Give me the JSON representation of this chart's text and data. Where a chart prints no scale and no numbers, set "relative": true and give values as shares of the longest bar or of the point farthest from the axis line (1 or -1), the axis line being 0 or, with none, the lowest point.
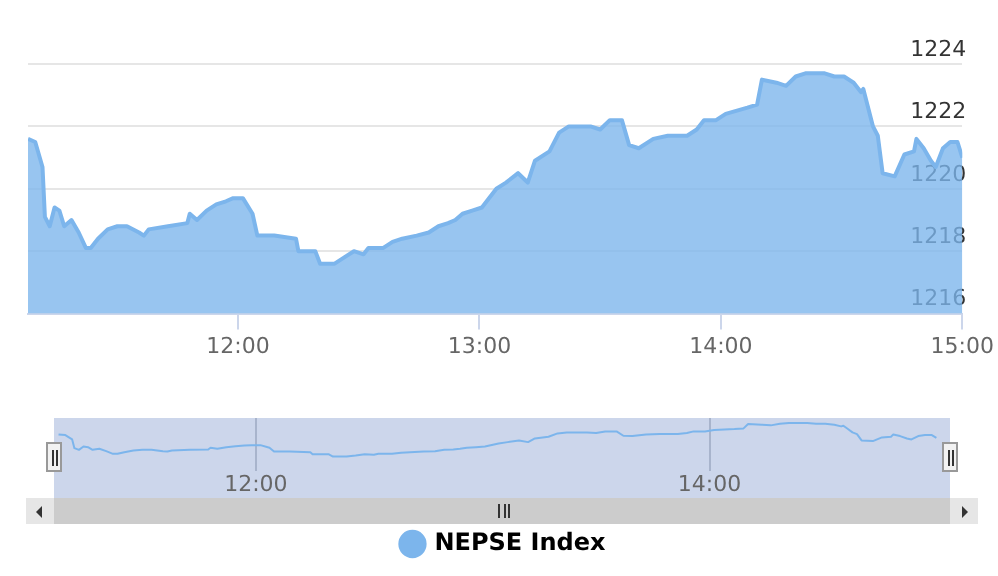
{
  "chart_data": [
    {
      "type": "area",
      "x": [
        11.13,
        11.16,
        11.19,
        11.2,
        11.22,
        11.24,
        11.26,
        11.28,
        11.31,
        11.34,
        11.37,
        11.39,
        11.42,
        11.46,
        11.5,
        11.54,
        11.59,
        11.61,
        11.63,
        11.71,
        11.79,
        11.8,
        11.83,
        11.87,
        11.91,
        11.95,
        11.98,
        12.02,
        12.06,
        12.08,
        12.15,
        12.24,
        12.25,
        12.32,
        12.34,
        12.4,
        12.44,
        12.48,
        12.52,
        12.54,
        12.6,
        12.64,
        12.68,
        12.74,
        12.79,
        12.83,
        12.87,
        12.9,
        12.93,
        12.97,
        13.01,
        13.07,
        13.11,
        13.16,
        13.2,
        13.23,
        13.29,
        13.33,
        13.37,
        13.46,
        13.5,
        13.54,
        13.59,
        13.62,
        13.66,
        13.72,
        13.78,
        13.86,
        13.9,
        13.93,
        13.98,
        14.02,
        14.11,
        14.15,
        14.17,
        14.23,
        14.27,
        14.31,
        14.35,
        14.39,
        14.43,
        14.47,
        14.51,
        14.55,
        14.58,
        14.59,
        14.61,
        14.63,
        14.65,
        14.67,
        14.72,
        14.76,
        14.8,
        14.81,
        14.84,
        14.87,
        14.89,
        14.92,
        14.95,
        14.98,
        15.0
      ],
      "series": [
        {
          "name": "NEPSE Index",
          "color": "#7cb5ec",
          "values": [
            1221.6,
            1221.5,
            1220.7,
            1219.1,
            1218.8,
            1219.4,
            1219.3,
            1218.8,
            1219.0,
            1218.6,
            1218.1,
            1218.1,
            1218.4,
            1218.7,
            1218.8,
            1218.8,
            1218.6,
            1218.5,
            1218.7,
            1218.8,
            1218.9,
            1219.2,
            1219.0,
            1219.3,
            1219.5,
            1219.6,
            1219.7,
            1219.7,
            1219.2,
            1218.5,
            1218.5,
            1218.4,
            1218.0,
            1218.0,
            1217.6,
            1217.6,
            1217.8,
            1218.0,
            1217.9,
            1218.1,
            1218.1,
            1218.3,
            1218.4,
            1218.5,
            1218.6,
            1218.8,
            1218.9,
            1219.0,
            1219.2,
            1219.3,
            1219.4,
            1220.0,
            1220.2,
            1220.5,
            1220.2,
            1220.9,
            1221.2,
            1221.8,
            1222.0,
            1222.0,
            1221.9,
            1222.2,
            1222.2,
            1221.4,
            1221.3,
            1221.6,
            1221.7,
            1221.7,
            1221.9,
            1222.2,
            1222.2,
            1222.4,
            1222.6,
            1222.7,
            1223.5,
            1223.4,
            1223.3,
            1223.6,
            1223.7,
            1223.7,
            1223.7,
            1223.6,
            1223.6,
            1223.4,
            1223.1,
            1223.2,
            1222.6,
            1222.0,
            1221.7,
            1220.5,
            1220.4,
            1221.1,
            1221.2,
            1221.6,
            1221.3,
            1220.9,
            1220.7,
            1221.3,
            1221.5,
            1221.5,
            1221.0
          ]
        }
      ],
      "xlim": [
        11.13,
        15
      ],
      "xticks": [
        {
          "value": 12,
          "label": "12:00"
        },
        {
          "value": 13,
          "label": "13:00"
        },
        {
          "value": 14,
          "label": "14:00"
        },
        {
          "value": 15,
          "label": "15:00"
        }
      ],
      "ylim": [
        1216,
        1224
      ],
      "yticks": [
        1216,
        1218,
        1220,
        1222,
        1224
      ],
      "grid": "y",
      "legend": "bottom"
    },
    {
      "type": "line",
      "relative": true,
      "x": [
        11.13,
        11.16,
        11.19,
        11.2,
        11.22,
        11.24,
        11.26,
        11.28,
        11.31,
        11.34,
        11.37,
        11.39,
        11.42,
        11.46,
        11.5,
        11.54,
        11.59,
        11.61,
        11.63,
        11.71,
        11.79,
        11.8,
        11.83,
        11.87,
        11.91,
        11.95,
        11.98,
        12.02,
        12.06,
        12.08,
        12.15,
        12.24,
        12.25,
        12.32,
        12.34,
        12.4,
        12.44,
        12.48,
        12.52,
        12.54,
        12.6,
        12.64,
        12.68,
        12.74,
        12.79,
        12.83,
        12.87,
        12.9,
        12.93,
        12.97,
        13.01,
        13.07,
        13.11,
        13.16,
        13.2,
        13.23,
        13.29,
        13.33,
        13.37,
        13.46,
        13.5,
        13.54,
        13.59,
        13.62,
        13.66,
        13.72,
        13.78,
        13.86,
        13.9,
        13.93,
        13.98,
        14.02,
        14.11,
        14.15,
        14.17,
        14.23,
        14.27,
        14.31,
        14.35,
        14.39,
        14.43,
        14.47,
        14.51,
        14.55,
        14.58,
        14.59,
        14.61,
        14.63,
        14.65,
        14.67,
        14.72,
        14.76,
        14.8,
        14.81,
        14.84,
        14.87,
        14.89,
        14.92,
        14.95,
        14.98,
        15.0
      ],
      "series": [
        {
          "color": "#7cb5ec",
          "values": [
            0.66,
            0.64,
            0.51,
            0.25,
            0.2,
            0.3,
            0.28,
            0.2,
            0.23,
            0.16,
            0.08,
            0.08,
            0.13,
            0.18,
            0.2,
            0.2,
            0.16,
            0.15,
            0.18,
            0.2,
            0.21,
            0.26,
            0.23,
            0.28,
            0.31,
            0.33,
            0.34,
            0.34,
            0.26,
            0.15,
            0.15,
            0.13,
            0.07,
            0.07,
            0,
            0,
            0.03,
            0.07,
            0.05,
            0.08,
            0.08,
            0.11,
            0.13,
            0.15,
            0.16,
            0.2,
            0.21,
            0.23,
            0.26,
            0.28,
            0.3,
            0.39,
            0.43,
            0.48,
            0.43,
            0.54,
            0.59,
            0.69,
            0.72,
            0.72,
            0.7,
            0.75,
            0.75,
            0.62,
            0.61,
            0.66,
            0.67,
            0.67,
            0.7,
            0.75,
            0.75,
            0.79,
            0.82,
            0.84,
            0.97,
            0.95,
            0.93,
            0.98,
            1,
            1,
            1,
            0.98,
            0.98,
            0.95,
            0.9,
            0.92,
            0.82,
            0.72,
            0.67,
            0.48,
            0.46,
            0.57,
            0.59,
            0.66,
            0.61,
            0.54,
            0.51,
            0.61,
            0.64,
            0.64,
            0.56
          ]
        }
      ],
      "xlim": [
        11.11,
        15.06
      ],
      "xticks": [
        {
          "value": 12,
          "label": "12:00"
        },
        {
          "value": 14,
          "label": "14:00"
        }
      ],
      "grid": "x",
      "tick_labels": "x"
    }
  ]
}
